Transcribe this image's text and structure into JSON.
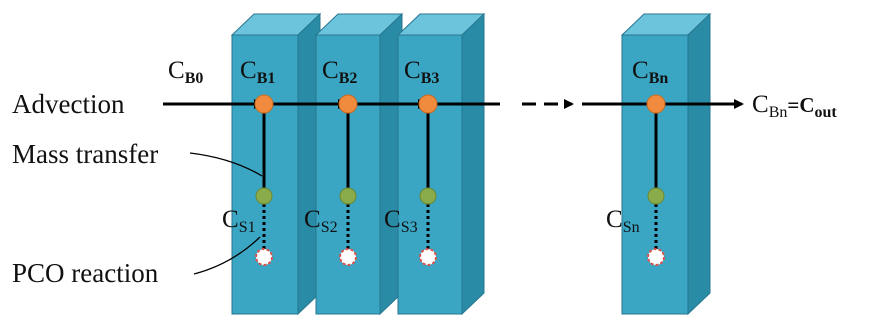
{
  "labels": {
    "advection": "Advection",
    "mass_transfer": "Mass transfer",
    "pco_reaction": "PCO reaction",
    "inlet_symbol": "C",
    "inlet_subscript": "B0",
    "outlet_lhs_symbol": "C",
    "outlet_lhs_subscript": "Bn",
    "outlet_rhs": "=C",
    "outlet_rhs_subscript": "out"
  },
  "cells": [
    {
      "bulk_symbol": "C",
      "bulk_subscript": "B1",
      "surface_symbol": "C",
      "surface_subscript": "S1"
    },
    {
      "bulk_symbol": "C",
      "bulk_subscript": "B2",
      "surface_symbol": "C",
      "surface_subscript": "S2"
    },
    {
      "bulk_symbol": "C",
      "bulk_subscript": "B3",
      "surface_symbol": "C",
      "surface_subscript": "S3"
    },
    {
      "bulk_symbol": "C",
      "bulk_subscript": "Bn",
      "surface_symbol": "C",
      "surface_subscript": "Sn"
    }
  ],
  "colors": {
    "cell_front": "#3aa6c4",
    "cell_side": "#2a8ba7",
    "cell_top": "#6cc4dc",
    "cell_edge": "#27778f",
    "bulk_node": "#f08a3c",
    "surface_node": "#8aab4a",
    "reaction_node_stroke": "#d9534f",
    "line": "#000000"
  }
}
